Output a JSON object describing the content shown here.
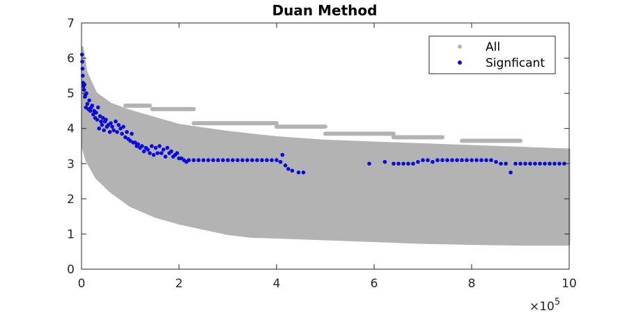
{
  "chart_data": {
    "type": "scatter",
    "title": "Duan Method",
    "xlabel": "",
    "ylabel": "",
    "xlim": [
      0,
      1000000
    ],
    "ylim": [
      0,
      7
    ],
    "x_multiplier_label": "×10",
    "x_multiplier_exponent": "5",
    "x_tick_values": [
      0,
      200000,
      400000,
      600000,
      800000,
      1000000
    ],
    "x_tick_labels": [
      "0",
      "2",
      "4",
      "6",
      "8",
      "10"
    ],
    "y_ticks": [
      0,
      1,
      2,
      3,
      4,
      5,
      6,
      7
    ],
    "y_tick_labels": [
      "0",
      "1",
      "2",
      "3",
      "4",
      "5",
      "6",
      "7"
    ],
    "grid": false,
    "legend_position": "top-right",
    "series": [
      {
        "name": "All",
        "color": "#b3b3b3",
        "band_lower": [
          [
            2000,
            3.5
          ],
          [
            10000,
            3.1
          ],
          [
            30000,
            2.6
          ],
          [
            60000,
            2.2
          ],
          [
            100000,
            1.8
          ],
          [
            150000,
            1.5
          ],
          [
            200000,
            1.3
          ],
          [
            250000,
            1.15
          ],
          [
            300000,
            1.0
          ],
          [
            350000,
            0.92
          ],
          [
            400000,
            0.9
          ],
          [
            500000,
            0.85
          ],
          [
            600000,
            0.8
          ],
          [
            700000,
            0.75
          ],
          [
            800000,
            0.72
          ],
          [
            900000,
            0.7
          ],
          [
            1000000,
            0.7
          ]
        ],
        "band_upper": [
          [
            2000,
            6.3
          ],
          [
            10000,
            5.6
          ],
          [
            30000,
            5.0
          ],
          [
            60000,
            4.7
          ],
          [
            100000,
            4.5
          ],
          [
            150000,
            4.3
          ],
          [
            200000,
            4.1
          ],
          [
            250000,
            4.0
          ],
          [
            300000,
            3.9
          ],
          [
            400000,
            3.75
          ],
          [
            500000,
            3.65
          ],
          [
            600000,
            3.6
          ],
          [
            700000,
            3.55
          ],
          [
            800000,
            3.5
          ],
          [
            900000,
            3.45
          ],
          [
            1000000,
            3.4
          ]
        ],
        "outlier_segments": [
          {
            "x_start": 90000,
            "x_end": 140000,
            "y": 4.65
          },
          {
            "x_start": 145000,
            "x_end": 230000,
            "y": 4.55
          },
          {
            "x_start": 230000,
            "x_end": 400000,
            "y": 4.15
          },
          {
            "x_start": 400000,
            "x_end": 500000,
            "y": 4.05
          },
          {
            "x_start": 500000,
            "x_end": 640000,
            "y": 3.85
          },
          {
            "x_start": 640000,
            "x_end": 740000,
            "y": 3.75
          },
          {
            "x_start": 780000,
            "x_end": 900000,
            "y": 3.65
          }
        ]
      },
      {
        "name": "Signficant",
        "color": "#0a0adf",
        "points": [
          [
            1000,
            6.1
          ],
          [
            1500,
            5.9
          ],
          [
            2000,
            5.7
          ],
          [
            2500,
            5.5
          ],
          [
            3000,
            5.3
          ],
          [
            4000,
            5.2
          ],
          [
            5000,
            5.1
          ],
          [
            6000,
            5.25
          ],
          [
            7000,
            4.9
          ],
          [
            8000,
            4.95
          ],
          [
            9000,
            4.6
          ],
          [
            10000,
            5.0
          ],
          [
            12000,
            4.7
          ],
          [
            14000,
            4.55
          ],
          [
            16000,
            4.8
          ],
          [
            18000,
            4.5
          ],
          [
            20000,
            4.6
          ],
          [
            22000,
            4.65
          ],
          [
            24000,
            4.4
          ],
          [
            26000,
            4.5
          ],
          [
            28000,
            4.3
          ],
          [
            30000,
            4.45
          ],
          [
            32000,
            4.25
          ],
          [
            34000,
            4.6
          ],
          [
            36000,
            4.0
          ],
          [
            38000,
            4.35
          ],
          [
            40000,
            4.2
          ],
          [
            42000,
            4.1
          ],
          [
            44000,
            4.3
          ],
          [
            46000,
            3.95
          ],
          [
            48000,
            4.2
          ],
          [
            50000,
            4.25
          ],
          [
            52000,
            4.05
          ],
          [
            55000,
            4.1
          ],
          [
            58000,
            3.9
          ],
          [
            60000,
            4.15
          ],
          [
            63000,
            4.05
          ],
          [
            66000,
            3.95
          ],
          [
            70000,
            4.2
          ],
          [
            73000,
            3.9
          ],
          [
            76000,
            4.1
          ],
          [
            80000,
            4.0
          ],
          [
            83000,
            3.85
          ],
          [
            86000,
            4.05
          ],
          [
            90000,
            3.75
          ],
          [
            93000,
            3.9
          ],
          [
            96000,
            3.7
          ],
          [
            100000,
            3.65
          ],
          [
            103000,
            3.85
          ],
          [
            106000,
            3.6
          ],
          [
            110000,
            3.6
          ],
          [
            113000,
            3.5
          ],
          [
            116000,
            3.55
          ],
          [
            120000,
            3.45
          ],
          [
            124000,
            3.5
          ],
          [
            128000,
            3.35
          ],
          [
            132000,
            3.45
          ],
          [
            136000,
            3.4
          ],
          [
            140000,
            3.3
          ],
          [
            144000,
            3.5
          ],
          [
            148000,
            3.25
          ],
          [
            152000,
            3.45
          ],
          [
            156000,
            3.3
          ],
          [
            160000,
            3.5
          ],
          [
            164000,
            3.3
          ],
          [
            168000,
            3.4
          ],
          [
            172000,
            3.2
          ],
          [
            176000,
            3.45
          ],
          [
            180000,
            3.3
          ],
          [
            184000,
            3.35
          ],
          [
            188000,
            3.2
          ],
          [
            192000,
            3.25
          ],
          [
            196000,
            3.3
          ],
          [
            200000,
            3.15
          ],
          [
            205000,
            3.15
          ],
          [
            210000,
            3.1
          ],
          [
            215000,
            3.05
          ],
          [
            220000,
            3.1
          ],
          [
            230000,
            3.1
          ],
          [
            240000,
            3.1
          ],
          [
            250000,
            3.1
          ],
          [
            260000,
            3.1
          ],
          [
            270000,
            3.1
          ],
          [
            280000,
            3.1
          ],
          [
            290000,
            3.1
          ],
          [
            300000,
            3.1
          ],
          [
            310000,
            3.1
          ],
          [
            320000,
            3.1
          ],
          [
            330000,
            3.1
          ],
          [
            340000,
            3.1
          ],
          [
            350000,
            3.1
          ],
          [
            360000,
            3.1
          ],
          [
            370000,
            3.1
          ],
          [
            380000,
            3.1
          ],
          [
            390000,
            3.1
          ],
          [
            400000,
            3.1
          ],
          [
            408000,
            3.05
          ],
          [
            412000,
            3.25
          ],
          [
            418000,
            2.95
          ],
          [
            424000,
            2.85
          ],
          [
            432000,
            2.8
          ],
          [
            445000,
            2.75
          ],
          [
            455000,
            2.75
          ],
          [
            590000,
            3.0
          ],
          [
            622000,
            3.05
          ],
          [
            640000,
            3.0
          ],
          [
            650000,
            3.0
          ],
          [
            660000,
            3.0
          ],
          [
            670000,
            3.0
          ],
          [
            680000,
            3.0
          ],
          [
            690000,
            3.05
          ],
          [
            700000,
            3.1
          ],
          [
            710000,
            3.1
          ],
          [
            720000,
            3.05
          ],
          [
            730000,
            3.1
          ],
          [
            740000,
            3.1
          ],
          [
            750000,
            3.1
          ],
          [
            760000,
            3.1
          ],
          [
            770000,
            3.1
          ],
          [
            780000,
            3.1
          ],
          [
            790000,
            3.1
          ],
          [
            800000,
            3.1
          ],
          [
            810000,
            3.1
          ],
          [
            820000,
            3.1
          ],
          [
            830000,
            3.1
          ],
          [
            840000,
            3.1
          ],
          [
            850000,
            3.05
          ],
          [
            860000,
            3.0
          ],
          [
            870000,
            3.0
          ],
          [
            880000,
            2.75
          ],
          [
            890000,
            3.0
          ],
          [
            900000,
            3.0
          ],
          [
            910000,
            3.0
          ],
          [
            920000,
            3.0
          ],
          [
            930000,
            3.0
          ],
          [
            940000,
            3.0
          ],
          [
            950000,
            3.0
          ],
          [
            960000,
            3.0
          ],
          [
            970000,
            3.0
          ],
          [
            980000,
            3.0
          ],
          [
            990000,
            3.0
          ]
        ]
      }
    ]
  }
}
